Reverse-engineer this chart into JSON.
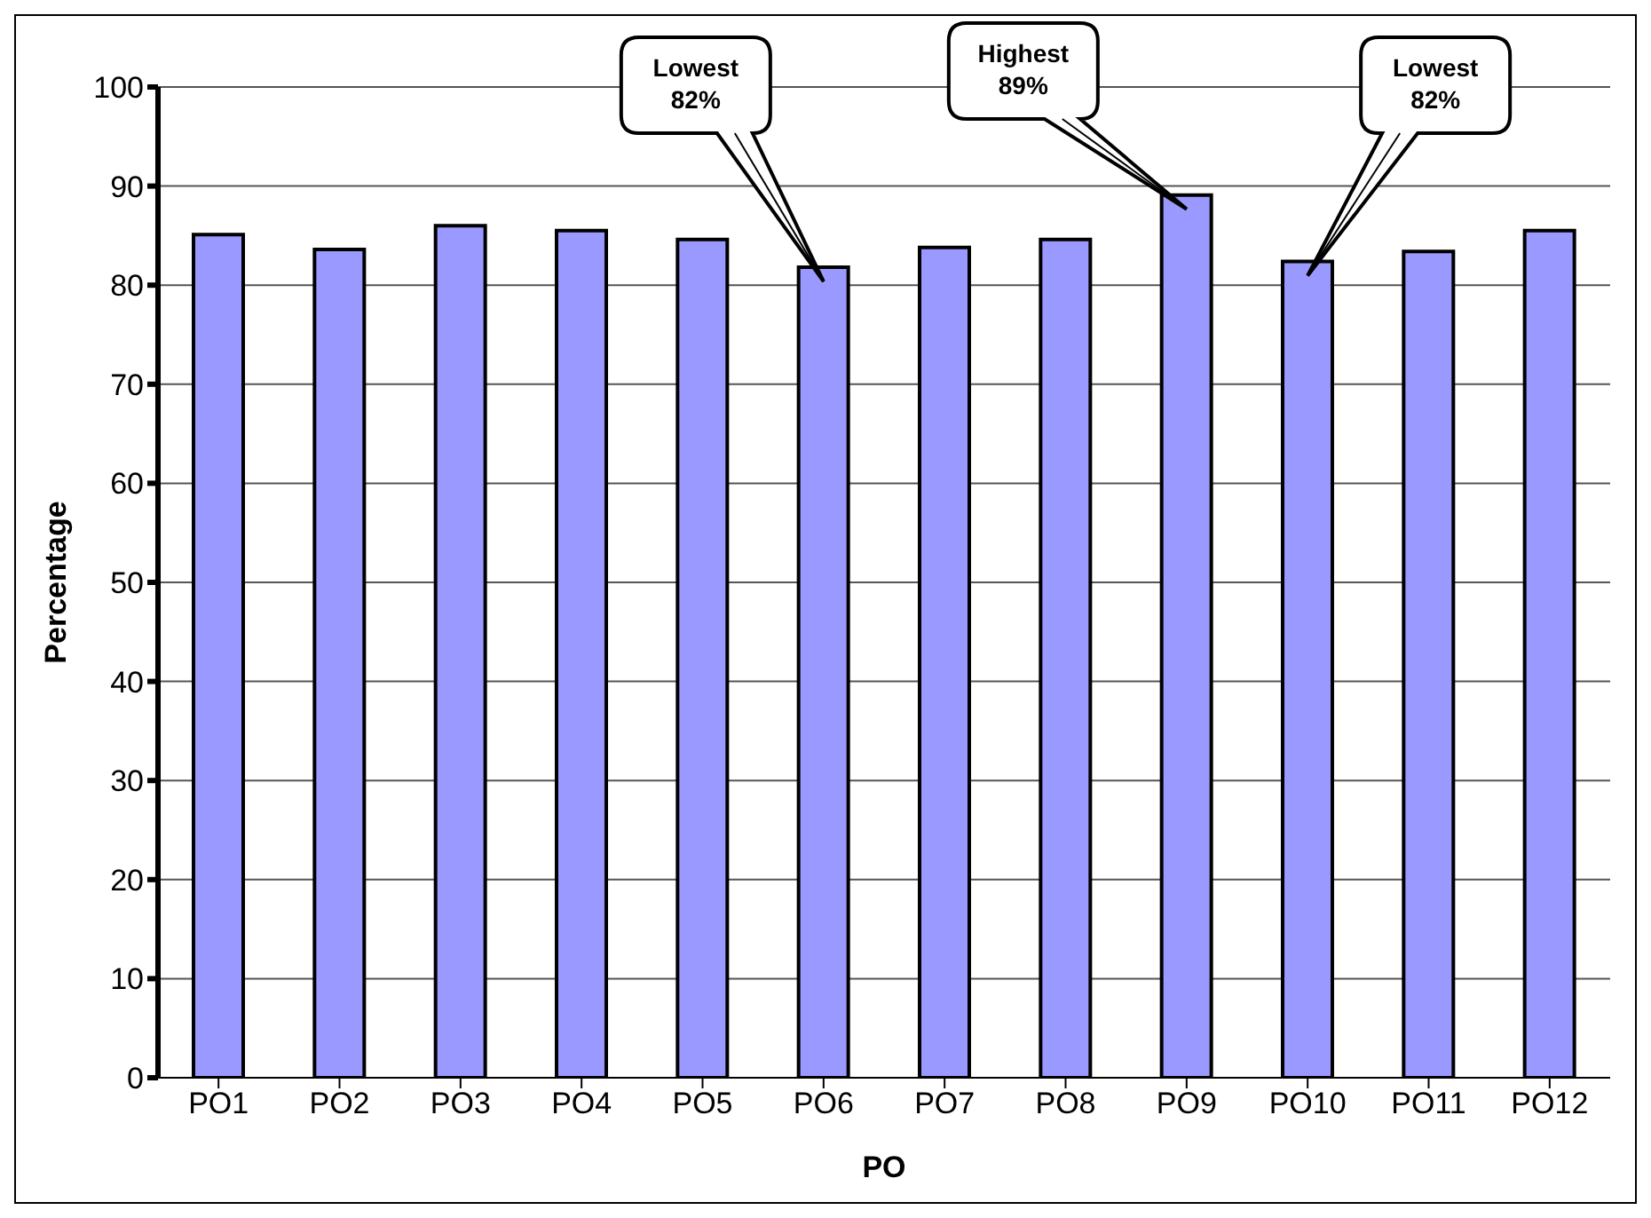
{
  "chart_data": {
    "type": "bar",
    "xlabel": "PO",
    "ylabel": "Percentage",
    "categories": [
      "PO1",
      "PO2",
      "PO3",
      "PO4",
      "PO5",
      "PO6",
      "PO7",
      "PO8",
      "PO9",
      "PO10",
      "PO11",
      "PO12"
    ],
    "values": [
      85.1,
      83.6,
      86.0,
      85.5,
      84.6,
      81.8,
      83.8,
      84.6,
      89.1,
      82.4,
      83.4,
      85.5
    ],
    "color": "#9999ff",
    "ylim": [
      0,
      100
    ],
    "yticks": [
      0,
      10,
      20,
      30,
      40,
      50,
      60,
      70,
      80,
      90,
      100
    ],
    "grid": "y",
    "annotations": [
      {
        "text": "Lowest 82%",
        "x": "PO6",
        "y": 81.8
      },
      {
        "text": "Highest 89%",
        "x": "PO9",
        "y": 89.1
      },
      {
        "text": "Lowest 82%",
        "x": "PO10",
        "y": 82.4
      }
    ]
  }
}
